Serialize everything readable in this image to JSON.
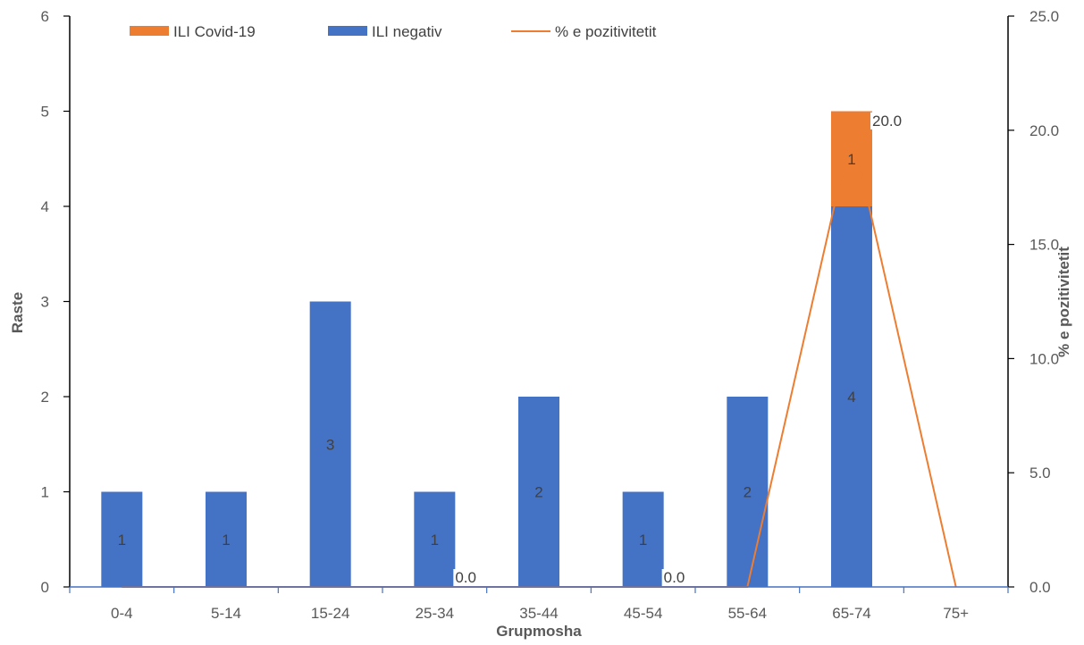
{
  "chart_data": {
    "type": "bar",
    "stacked": true,
    "categories": [
      "0-4",
      "5-14",
      "15-24",
      "25-34",
      "35-44",
      "45-54",
      "55-64",
      "65-74",
      "75+"
    ],
    "series": [
      {
        "name": "ILI negativ",
        "color": "#4472C4",
        "axis": "left",
        "values": [
          1,
          1,
          3,
          1,
          2,
          1,
          2,
          4,
          0
        ],
        "value_labels": [
          "1",
          "1",
          "3",
          "1",
          "2",
          "1",
          "2",
          "4",
          ""
        ]
      },
      {
        "name": "ILI Covid-19",
        "color": "#ED7D31",
        "axis": "left",
        "values": [
          0,
          0,
          0,
          0,
          0,
          0,
          0,
          1,
          0
        ],
        "value_labels": [
          "",
          "",
          "",
          "",
          "",
          "",
          "",
          "1",
          ""
        ]
      },
      {
        "name": "% e pozitivitetit",
        "color": "#ED7D31",
        "type": "line",
        "axis": "right",
        "values": [
          0,
          0,
          0,
          0,
          0,
          0,
          0,
          20,
          0
        ],
        "value_labels": [
          "",
          "",
          "",
          "0.0",
          "",
          "0.0",
          "",
          "20.0",
          ""
        ]
      }
    ],
    "legend_order": [
      "ILI Covid-19",
      "ILI negativ",
      "% e pozitivitetit"
    ],
    "legend_position": "top",
    "xlabel": "Grupmosha",
    "ylabel": "Raste",
    "y2label": "% e pozitivitetit",
    "ylim": [
      0,
      6
    ],
    "yticks": [
      "0",
      "1",
      "2",
      "3",
      "4",
      "5",
      "6"
    ],
    "y2lim": [
      0,
      25
    ],
    "y2ticks": [
      "0.0",
      "5.0",
      "10.0",
      "15.0",
      "20.0",
      "25.0"
    ],
    "grid": false
  }
}
